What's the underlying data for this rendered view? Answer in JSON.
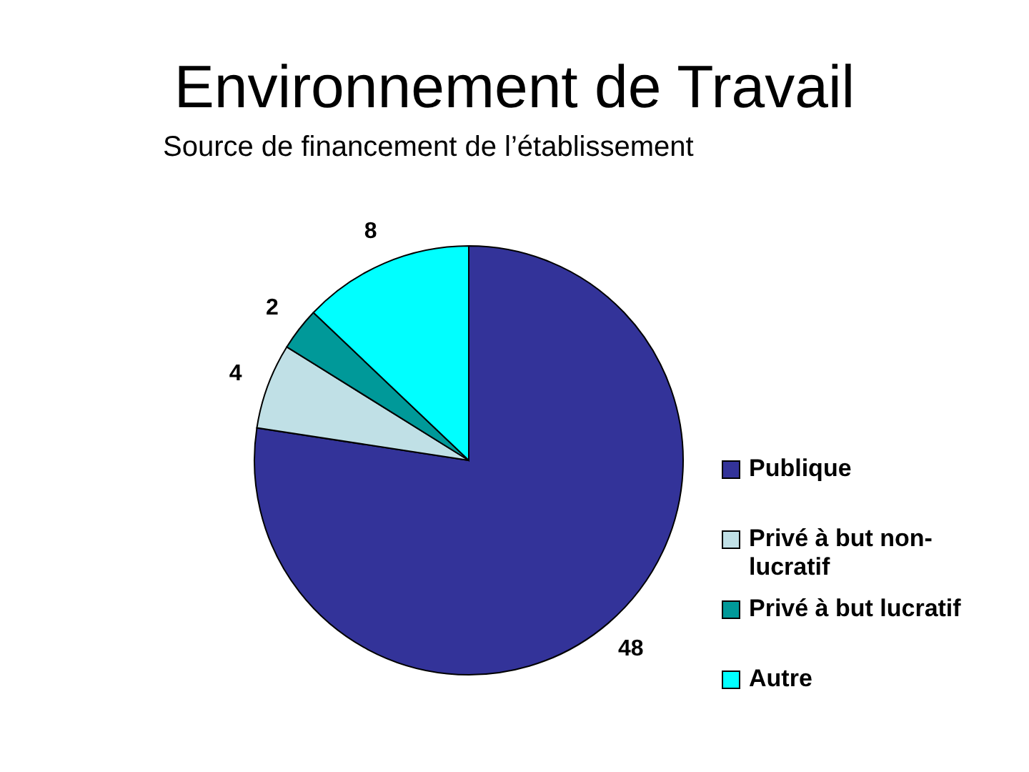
{
  "chart_data": {
    "type": "pie",
    "title": "Environnement de Travail",
    "subtitle": "Source de financement de l’établissement",
    "categories": [
      "Publique",
      "Privé à but non-lucratif",
      "Privé à but lucratif",
      "Autre"
    ],
    "values": [
      48,
      4,
      2,
      8
    ],
    "colors": [
      "#333399",
      "#c0e0e6",
      "#009999",
      "#00ffff"
    ],
    "data_labels": true,
    "legend": "right"
  }
}
